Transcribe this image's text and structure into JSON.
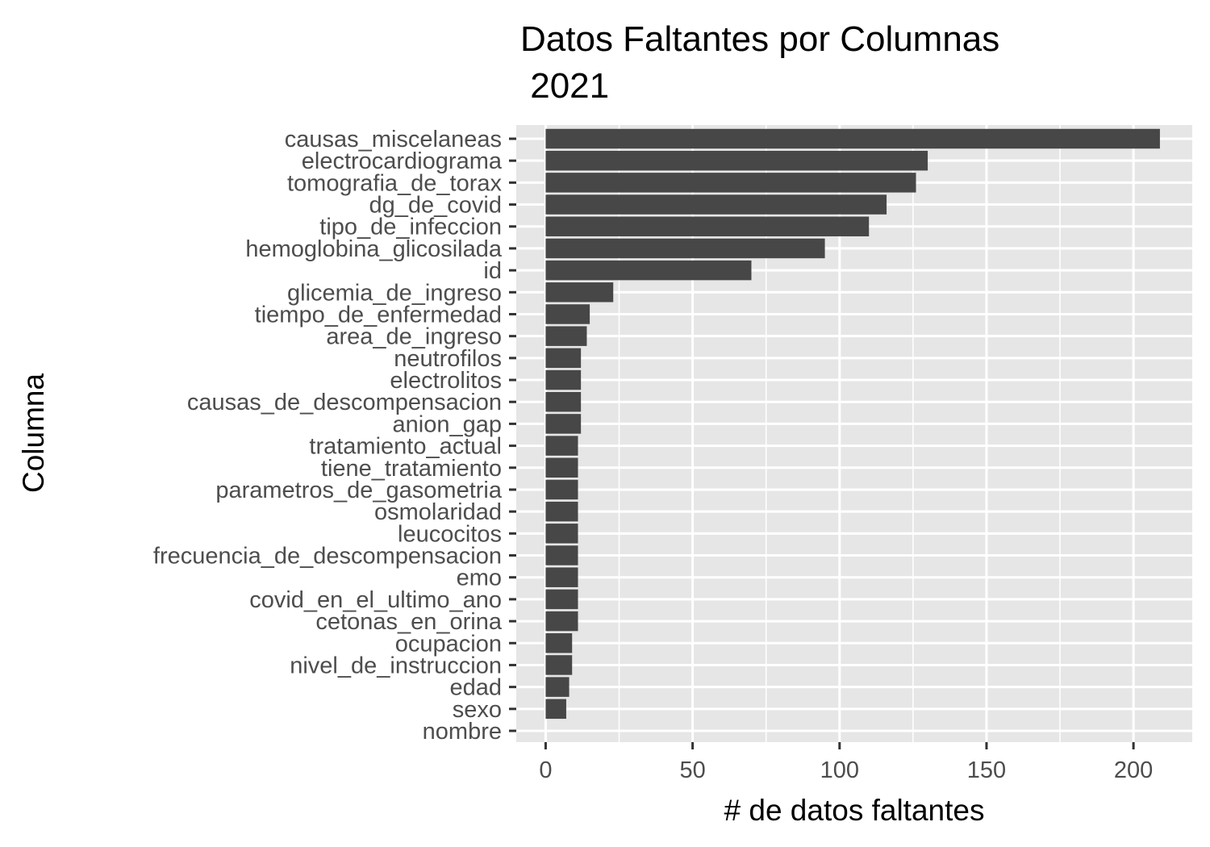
{
  "chart_data": {
    "type": "bar",
    "orientation": "horizontal",
    "title": "Datos Faltantes por Columnas\n 2021",
    "title_lines": [
      "Datos Faltantes por Columnas",
      " 2021"
    ],
    "xlabel": "# de datos faltantes",
    "ylabel": "Columna",
    "xlim": [
      -10,
      220
    ],
    "xticks": [
      0,
      50,
      100,
      150,
      200
    ],
    "xtick_labels": [
      "0",
      "50",
      "100",
      "150",
      "200"
    ],
    "grid": true,
    "legend": "none",
    "categories": [
      "causas_miscelaneas",
      "electrocardiograma",
      "tomografia_de_torax",
      "dg_de_covid",
      "tipo_de_infeccion",
      "hemoglobina_glicosilada",
      "id",
      "glicemia_de_ingreso",
      "tiempo_de_enfermedad",
      "area_de_ingreso",
      "neutrofilos",
      "electrolitos",
      "causas_de_descompensacion",
      "anion_gap",
      "tratamiento_actual",
      "tiene_tratamiento",
      "parametros_de_gasometria",
      "osmolaridad",
      "leucocitos",
      "frecuencia_de_descompensacion",
      "emo",
      "covid_en_el_ultimo_ano",
      "cetonas_en_orina",
      "ocupacion",
      "nivel_de_instruccion",
      "edad",
      "sexo",
      "nombre"
    ],
    "values": [
      209,
      130,
      126,
      116,
      110,
      95,
      70,
      23,
      15,
      14,
      12,
      12,
      12,
      12,
      11,
      11,
      11,
      11,
      11,
      11,
      11,
      11,
      11,
      9,
      9,
      8,
      7,
      0
    ],
    "colors": {
      "bar": "#474747",
      "panel": "#e6e6e6",
      "grid": "#ffffff",
      "tick_text": "#4d4d4d",
      "tick_mark": "#333333"
    }
  }
}
